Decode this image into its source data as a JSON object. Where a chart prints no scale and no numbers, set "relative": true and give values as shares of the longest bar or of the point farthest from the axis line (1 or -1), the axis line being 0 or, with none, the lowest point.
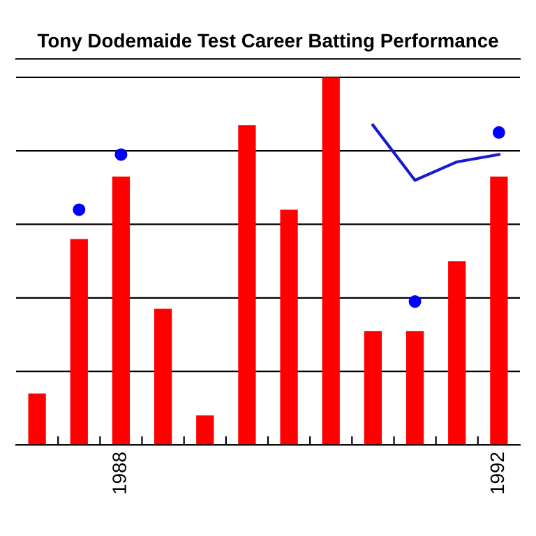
{
  "chart_data": {
    "type": "bar",
    "title": "Tony Dodemaide Test Career Batting Performance",
    "relative": true,
    "grid": "y",
    "categories": [
      null,
      null,
      "1988",
      null,
      null,
      null,
      null,
      null,
      null,
      null,
      null,
      "1992"
    ],
    "series": [
      {
        "color": "#ff0000",
        "values": [
          0.14,
          0.56,
          0.73,
          0.37,
          0.08,
          0.87,
          0.64,
          1,
          0.31,
          0.31,
          0.5,
          0.73
        ]
      },
      {
        "type": "scatter",
        "marker": "circle",
        "color": "#0000ff",
        "values": [
          null,
          0.64,
          0.79,
          null,
          null,
          null,
          null,
          null,
          null,
          0.39,
          null,
          0.85
        ]
      },
      {
        "type": "line",
        "color": "#1a1acc",
        "values": [
          null,
          null,
          null,
          null,
          null,
          null,
          null,
          null,
          0.87,
          0.72,
          0.77,
          0.79
        ]
      }
    ]
  }
}
